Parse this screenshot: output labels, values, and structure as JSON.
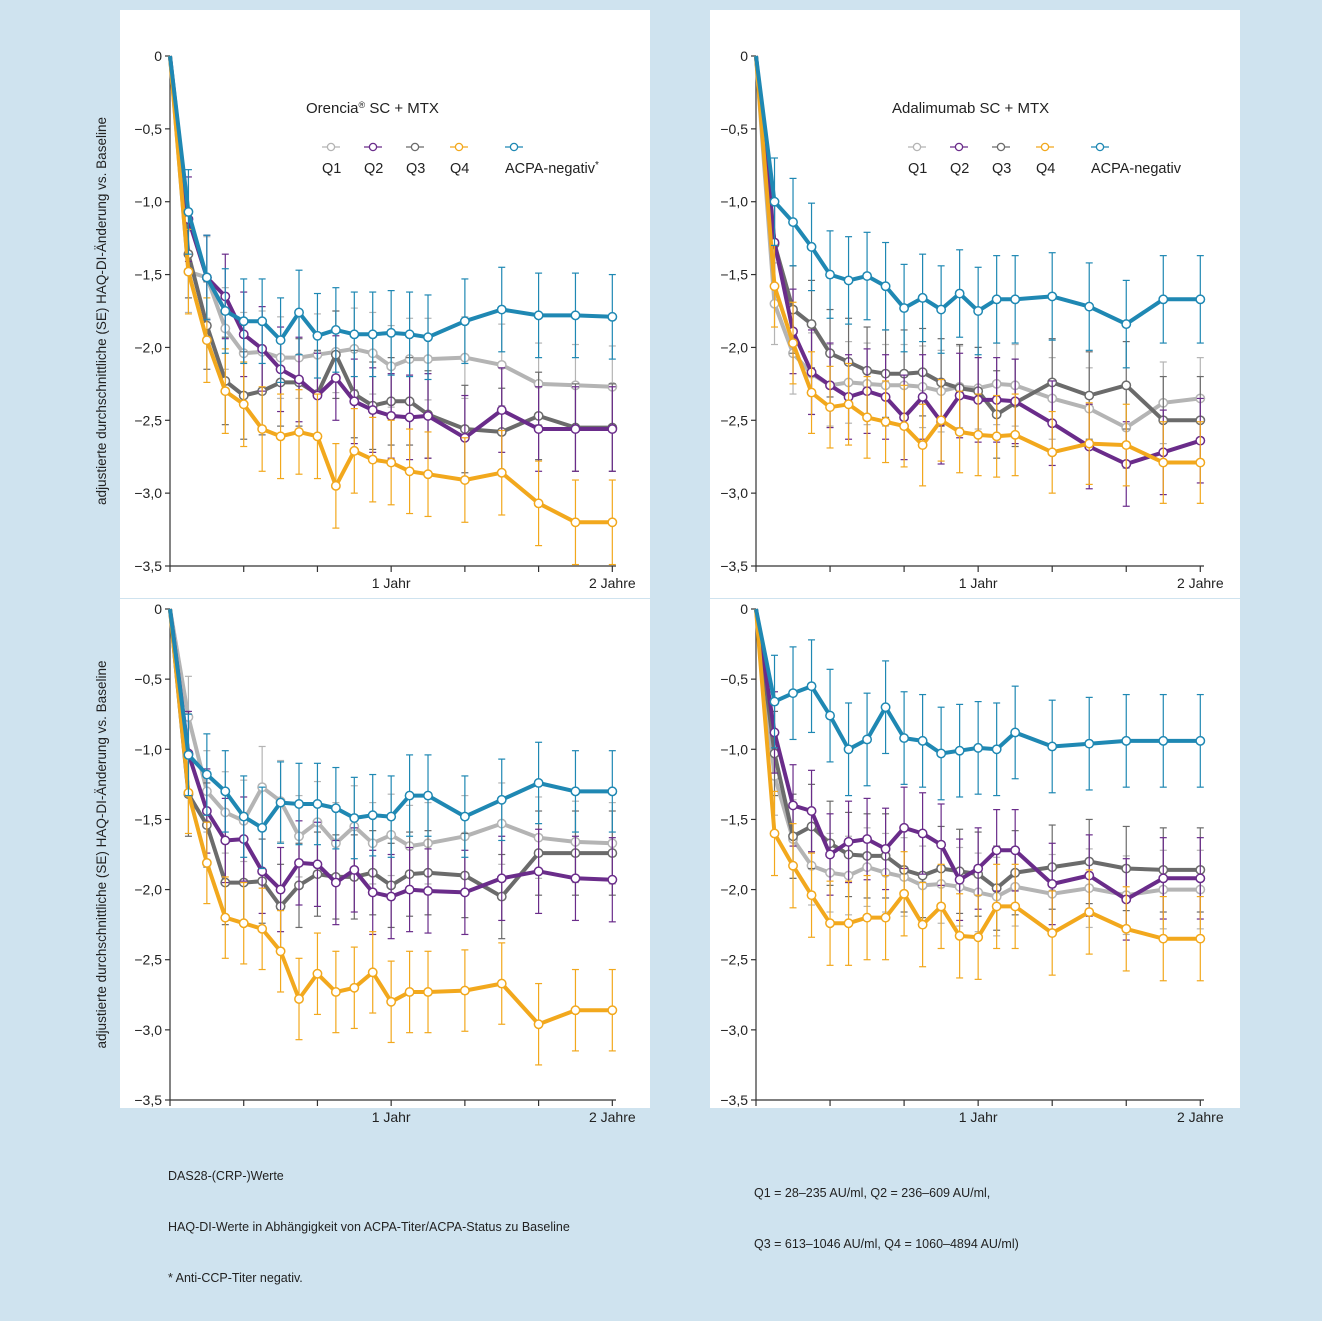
{
  "colors": {
    "Q1": "#b4b4b4",
    "Q2": "#6a2c8a",
    "Q3": "#6b6b6b",
    "Q4": "#f2a81d",
    "ACPA": "#1f88b3",
    "background": "#cfe3ef",
    "panel": "#ffffff"
  },
  "ylabel": "adjustierte durchschnittliche (SE) HAQ-DI-Änderung vs. Baseline",
  "footnotes_left": [
    "DAS28-(CRP-)Werte",
    "HAQ-DI-Werte in Abhängigkeit von ACPA-Titer/ACPA-Status zu Baseline",
    "* Anti-CCP-Titer negativ."
  ],
  "footnotes_right": [
    "Q1 = 28–235 AU/ml, Q2 = 236–609 AU/ml,",
    "Q3 = 613–1046 AU/ml, Q4 = 1060–4894 AU/ml)"
  ],
  "chart_data": [
    {
      "type": "line",
      "title": "Orencia® SC + MTX",
      "ylabel": "adjustierte durchschnittliche (SE) HAQ-DI-Änderung vs. Baseline",
      "ylim": [
        -3.5,
        0
      ],
      "yticks": [
        "0",
        "-0,5",
        "-1,0",
        "-1,5",
        "-2,0",
        "-2,5",
        "-3,0",
        "-3,5"
      ],
      "xticklabels": [
        "1 Jahr",
        "2 Jahre"
      ],
      "legend": [
        "Q1",
        "Q2",
        "Q3",
        "Q4",
        "ACPA-negativ*"
      ],
      "legend_position": "top-right",
      "series": [
        {
          "name": "Q1",
          "x": [
            0,
            1,
            2,
            3,
            4,
            5,
            6,
            7,
            8,
            9,
            10,
            11,
            12,
            13,
            14,
            16,
            18,
            20,
            22,
            24
          ],
          "y": [
            0,
            -1.48,
            -1.52,
            -1.87,
            -2.04,
            -2.03,
            -2.07,
            -2.07,
            -2.05,
            -2.03,
            -2.01,
            -2.04,
            -2.13,
            -2.08,
            -2.08,
            -2.07,
            -2.12,
            -2.25,
            -2.26,
            -2.27
          ],
          "se": 0.28
        },
        {
          "name": "Q2",
          "x": [
            0,
            1,
            2,
            3,
            4,
            5,
            6,
            7,
            8,
            9,
            10,
            11,
            12,
            13,
            14,
            16,
            18,
            20,
            22,
            24
          ],
          "y": [
            0,
            -1.12,
            -1.52,
            -1.65,
            -1.91,
            -2.01,
            -2.15,
            -2.22,
            -2.33,
            -2.21,
            -2.37,
            -2.43,
            -2.47,
            -2.48,
            -2.47,
            -2.62,
            -2.43,
            -2.56,
            -2.56,
            -2.56
          ],
          "se": 0.29
        },
        {
          "name": "Q3",
          "x": [
            0,
            1,
            2,
            3,
            4,
            5,
            6,
            7,
            8,
            9,
            10,
            11,
            12,
            13,
            14,
            16,
            18,
            20,
            22,
            24
          ],
          "y": [
            0,
            -1.36,
            -1.85,
            -2.23,
            -2.33,
            -2.3,
            -2.24,
            -2.24,
            -2.32,
            -2.05,
            -2.32,
            -2.4,
            -2.37,
            -2.37,
            -2.46,
            -2.56,
            -2.58,
            -2.47,
            -2.55,
            -2.55
          ],
          "se": 0.3
        },
        {
          "name": "Q4",
          "x": [
            0,
            1,
            2,
            3,
            4,
            5,
            6,
            7,
            8,
            9,
            10,
            11,
            12,
            13,
            14,
            16,
            18,
            20,
            22,
            24
          ],
          "y": [
            0,
            -1.48,
            -1.95,
            -2.3,
            -2.39,
            -2.56,
            -2.61,
            -2.58,
            -2.61,
            -2.95,
            -2.71,
            -2.77,
            -2.79,
            -2.85,
            -2.87,
            -2.91,
            -2.86,
            -3.07,
            -3.2,
            -3.2
          ],
          "se": 0.29
        },
        {
          "name": "ACPA-negativ*",
          "x": [
            0,
            1,
            2,
            3,
            4,
            5,
            6,
            7,
            8,
            9,
            10,
            11,
            12,
            13,
            14,
            16,
            18,
            20,
            22,
            24
          ],
          "y": [
            0,
            -1.07,
            -1.52,
            -1.75,
            -1.82,
            -1.82,
            -1.95,
            -1.76,
            -1.92,
            -1.88,
            -1.91,
            -1.91,
            -1.9,
            -1.91,
            -1.93,
            -1.82,
            -1.74,
            -1.78,
            -1.78,
            -1.79
          ],
          "se": 0.29
        }
      ]
    },
    {
      "type": "line",
      "title": "Adalimumab SC + MTX",
      "ylim": [
        -3.5,
        0
      ],
      "yticks": [
        "0",
        "-0,5",
        "-1,0",
        "-1,5",
        "-2,0",
        "-2,5",
        "-3,0",
        "-3,5"
      ],
      "xticklabels": [
        "1 Jahr",
        "2 Jahre"
      ],
      "legend": [
        "Q1",
        "Q2",
        "Q3",
        "Q4",
        "ACPA-negativ"
      ],
      "legend_position": "top-right",
      "series": [
        {
          "name": "Q1",
          "x": [
            0,
            1,
            2,
            3,
            4,
            5,
            6,
            7,
            8,
            9,
            10,
            11,
            12,
            13,
            14,
            16,
            18,
            20,
            22,
            24
          ],
          "y": [
            0,
            -1.7,
            -2.04,
            -2.18,
            -2.26,
            -2.24,
            -2.25,
            -2.26,
            -2.26,
            -2.27,
            -2.3,
            -2.27,
            -2.28,
            -2.25,
            -2.26,
            -2.35,
            -2.42,
            -2.55,
            -2.38,
            -2.35
          ],
          "se": 0.28
        },
        {
          "name": "Q2",
          "x": [
            0,
            1,
            2,
            3,
            4,
            5,
            6,
            7,
            8,
            9,
            10,
            11,
            12,
            13,
            14,
            16,
            18,
            20,
            22,
            24
          ],
          "y": [
            0,
            -1.28,
            -1.89,
            -2.17,
            -2.26,
            -2.34,
            -2.3,
            -2.34,
            -2.48,
            -2.34,
            -2.51,
            -2.33,
            -2.36,
            -2.36,
            -2.37,
            -2.52,
            -2.68,
            -2.8,
            -2.72,
            -2.64
          ],
          "se": 0.29
        },
        {
          "name": "Q3",
          "x": [
            0,
            1,
            2,
            3,
            4,
            5,
            6,
            7,
            8,
            9,
            10,
            11,
            12,
            13,
            14,
            16,
            18,
            20,
            22,
            24
          ],
          "y": [
            0,
            -1.29,
            -1.74,
            -1.84,
            -2.04,
            -2.1,
            -2.16,
            -2.18,
            -2.18,
            -2.17,
            -2.24,
            -2.28,
            -2.3,
            -2.46,
            -2.38,
            -2.24,
            -2.33,
            -2.26,
            -2.5,
            -2.5
          ],
          "se": 0.3
        },
        {
          "name": "Q4",
          "x": [
            0,
            1,
            2,
            3,
            4,
            5,
            6,
            7,
            8,
            9,
            10,
            11,
            12,
            13,
            14,
            16,
            18,
            20,
            22,
            24
          ],
          "y": [
            0,
            -1.58,
            -1.97,
            -2.31,
            -2.41,
            -2.39,
            -2.48,
            -2.51,
            -2.54,
            -2.67,
            -2.5,
            -2.58,
            -2.6,
            -2.61,
            -2.6,
            -2.72,
            -2.66,
            -2.67,
            -2.79,
            -2.79
          ],
          "se": 0.28
        },
        {
          "name": "ACPA-negativ",
          "x": [
            0,
            1,
            2,
            3,
            4,
            5,
            6,
            7,
            8,
            9,
            10,
            11,
            12,
            13,
            14,
            16,
            18,
            20,
            22,
            24
          ],
          "y": [
            0,
            -1.0,
            -1.14,
            -1.31,
            -1.5,
            -1.54,
            -1.51,
            -1.58,
            -1.73,
            -1.66,
            -1.74,
            -1.63,
            -1.75,
            -1.67,
            -1.67,
            -1.65,
            -1.72,
            -1.84,
            -1.67,
            -1.67
          ],
          "se": 0.3
        }
      ]
    },
    {
      "type": "line",
      "title": "",
      "ylabel": "adjustierte durchschnittliche (SE) HAQ-DI-Änderung vs. Baseline",
      "ylim": [
        -3.5,
        0
      ],
      "yticks": [
        "0",
        "-0,5",
        "-1,0",
        "-1,5",
        "-2,0",
        "-2,5",
        "-3,0",
        "-3,5"
      ],
      "xticklabels": [
        "1 Jahr",
        "2 Jahre"
      ],
      "series": [
        {
          "name": "Q1",
          "x": [
            0,
            1,
            2,
            3,
            4,
            5,
            6,
            7,
            8,
            9,
            10,
            11,
            12,
            13,
            14,
            16,
            18,
            20,
            22,
            24
          ],
          "y": [
            0,
            -0.77,
            -1.3,
            -1.45,
            -1.51,
            -1.27,
            -1.37,
            -1.62,
            -1.52,
            -1.67,
            -1.55,
            -1.67,
            -1.61,
            -1.69,
            -1.67,
            -1.62,
            -1.53,
            -1.63,
            -1.66,
            -1.67
          ],
          "se": 0.29
        },
        {
          "name": "Q2",
          "x": [
            0,
            1,
            2,
            3,
            4,
            5,
            6,
            7,
            8,
            9,
            10,
            11,
            12,
            13,
            14,
            16,
            18,
            20,
            22,
            24
          ],
          "y": [
            0,
            -1.03,
            -1.44,
            -1.65,
            -1.64,
            -1.87,
            -2.0,
            -1.81,
            -1.82,
            -1.95,
            -1.86,
            -2.02,
            -2.05,
            -2.0,
            -2.01,
            -2.02,
            -1.92,
            -1.87,
            -1.92,
            -1.93
          ],
          "se": 0.3
        },
        {
          "name": "Q3",
          "x": [
            0,
            1,
            2,
            3,
            4,
            5,
            6,
            7,
            8,
            9,
            10,
            11,
            12,
            13,
            14,
            16,
            18,
            20,
            22,
            24
          ],
          "y": [
            0,
            -1.32,
            -1.54,
            -1.95,
            -1.95,
            -1.94,
            -2.12,
            -1.97,
            -1.89,
            -1.91,
            -1.91,
            -1.88,
            -1.97,
            -1.89,
            -1.88,
            -1.9,
            -2.05,
            -1.74,
            -1.74,
            -1.74
          ],
          "se": 0.3
        },
        {
          "name": "Q4",
          "x": [
            0,
            1,
            2,
            3,
            4,
            5,
            6,
            7,
            8,
            9,
            10,
            11,
            12,
            13,
            14,
            16,
            18,
            20,
            22,
            24
          ],
          "y": [
            0,
            -1.31,
            -1.81,
            -2.2,
            -2.24,
            -2.28,
            -2.44,
            -2.78,
            -2.6,
            -2.73,
            -2.7,
            -2.59,
            -2.8,
            -2.73,
            -2.73,
            -2.72,
            -2.67,
            -2.96,
            -2.86,
            -2.86
          ],
          "se": 0.29
        },
        {
          "name": "ACPA-negativ",
          "x": [
            0,
            1,
            2,
            3,
            4,
            5,
            6,
            7,
            8,
            9,
            10,
            11,
            12,
            13,
            14,
            16,
            18,
            20,
            22,
            24
          ],
          "y": [
            0,
            -1.04,
            -1.18,
            -1.3,
            -1.48,
            -1.56,
            -1.38,
            -1.39,
            -1.39,
            -1.42,
            -1.49,
            -1.47,
            -1.48,
            -1.33,
            -1.33,
            -1.48,
            -1.36,
            -1.24,
            -1.3,
            -1.3
          ],
          "se": 0.29
        }
      ]
    },
    {
      "type": "line",
      "title": "",
      "ylim": [
        -3.5,
        0
      ],
      "yticks": [
        "0",
        "-0,5",
        "-1,0",
        "-1,5",
        "-2,0",
        "-2,5",
        "-3,0",
        "-3,5"
      ],
      "xticklabels": [
        "1 Jahr",
        "2 Jahre"
      ],
      "series": [
        {
          "name": "Q1",
          "x": [
            0,
            1,
            2,
            3,
            4,
            5,
            6,
            7,
            8,
            9,
            10,
            11,
            12,
            13,
            14,
            16,
            18,
            20,
            22,
            24
          ],
          "y": [
            0,
            -1.19,
            -1.64,
            -1.83,
            -1.88,
            -1.9,
            -1.84,
            -1.88,
            -1.91,
            -1.97,
            -1.96,
            -1.98,
            -2.02,
            -2.05,
            -1.98,
            -2.03,
            -1.99,
            -2.04,
            -2.0,
            -2.0
          ],
          "se": 0.28
        },
        {
          "name": "Q2",
          "x": [
            0,
            1,
            2,
            3,
            4,
            5,
            6,
            7,
            8,
            9,
            10,
            11,
            12,
            13,
            14,
            16,
            18,
            20,
            22,
            24
          ],
          "y": [
            0,
            -0.88,
            -1.4,
            -1.44,
            -1.75,
            -1.66,
            -1.64,
            -1.71,
            -1.56,
            -1.6,
            -1.68,
            -1.93,
            -1.85,
            -1.72,
            -1.72,
            -1.96,
            -1.9,
            -2.07,
            -1.92,
            -1.92
          ],
          "se": 0.29
        },
        {
          "name": "Q3",
          "x": [
            0,
            1,
            2,
            3,
            4,
            5,
            6,
            7,
            8,
            9,
            10,
            11,
            12,
            13,
            14,
            16,
            18,
            20,
            22,
            24
          ],
          "y": [
            0,
            -1.03,
            -1.62,
            -1.55,
            -1.67,
            -1.75,
            -1.76,
            -1.76,
            -1.86,
            -1.9,
            -1.85,
            -1.87,
            -1.89,
            -1.99,
            -1.88,
            -1.84,
            -1.8,
            -1.85,
            -1.86,
            -1.86
          ],
          "se": 0.3
        },
        {
          "name": "Q4",
          "x": [
            0,
            1,
            2,
            3,
            4,
            5,
            6,
            7,
            8,
            9,
            10,
            11,
            12,
            13,
            14,
            16,
            18,
            20,
            22,
            24
          ],
          "y": [
            0,
            -1.6,
            -1.83,
            -2.04,
            -2.24,
            -2.24,
            -2.2,
            -2.2,
            -2.03,
            -2.25,
            -2.12,
            -2.33,
            -2.34,
            -2.12,
            -2.12,
            -2.31,
            -2.16,
            -2.28,
            -2.35,
            -2.35
          ],
          "se": 0.3
        },
        {
          "name": "ACPA-negativ",
          "x": [
            0,
            1,
            2,
            3,
            4,
            5,
            6,
            7,
            8,
            9,
            10,
            11,
            12,
            13,
            14,
            16,
            18,
            20,
            22,
            24
          ],
          "y": [
            0,
            -0.66,
            -0.6,
            -0.55,
            -0.76,
            -1.0,
            -0.93,
            -0.7,
            -0.92,
            -0.94,
            -1.03,
            -1.01,
            -0.99,
            -1.0,
            -0.88,
            -0.98,
            -0.96,
            -0.94,
            -0.94,
            -0.94
          ],
          "se": 0.33
        }
      ]
    }
  ]
}
